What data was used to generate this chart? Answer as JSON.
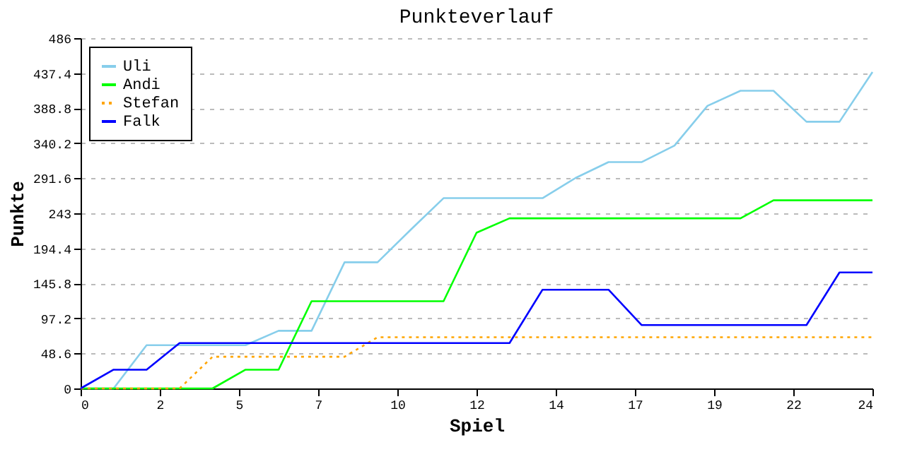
{
  "chart_data": {
    "type": "line",
    "title": "Punkteverlauf",
    "xlabel": "Spiel",
    "ylabel": "Punkte",
    "x": [
      0,
      1,
      2,
      3,
      4,
      5,
      6,
      7,
      8,
      9,
      10,
      11,
      12,
      13,
      14,
      15,
      16,
      17,
      18,
      19,
      20,
      21,
      22,
      23,
      24
    ],
    "series": [
      {
        "name": "Uli",
        "color": "#87ceeb",
        "values": [
          0,
          0,
          60,
          60,
          60,
          60,
          80,
          80,
          175,
          175,
          220,
          264,
          264,
          264,
          264,
          292,
          314,
          314,
          337,
          392,
          413,
          413,
          370,
          370,
          439
        ]
      },
      {
        "name": "Andi",
        "color": "#00ff00",
        "values": [
          0,
          0,
          0,
          0,
          0,
          26,
          26,
          121,
          121,
          121,
          121,
          121,
          216,
          236,
          236,
          236,
          236,
          236,
          236,
          236,
          236,
          261,
          261,
          261,
          261
        ]
      },
      {
        "name": "Stefan",
        "color": "#ffa500",
        "line_style": "dotted",
        "values": [
          0,
          0,
          0,
          0,
          44,
          44,
          44,
          44,
          44,
          71,
          71,
          71,
          71,
          71,
          71,
          71,
          71,
          71,
          71,
          71,
          71,
          71,
          71,
          71,
          71
        ]
      },
      {
        "name": "Falk",
        "color": "#0000ff",
        "values": [
          0,
          26,
          26,
          63,
          63,
          63,
          63,
          63,
          63,
          63,
          63,
          63,
          63,
          63,
          137,
          137,
          137,
          88,
          88,
          88,
          88,
          88,
          88,
          161,
          161
        ]
      }
    ],
    "xlim": [
      0,
      24
    ],
    "xticks": [
      0,
      {
        "value": 2.4,
        "label": "2"
      },
      {
        "value": 4.8,
        "label": "5"
      },
      {
        "value": 7.2,
        "label": "7"
      },
      {
        "value": 9.6,
        "label": "10"
      },
      12,
      {
        "value": 14.4,
        "label": "14"
      },
      {
        "value": 16.8,
        "label": "17"
      },
      {
        "value": 19.2,
        "label": "19"
      },
      {
        "value": 21.6,
        "label": "22"
      },
      24
    ],
    "ylim": [
      0,
      486
    ],
    "yticks": [
      0,
      48.6,
      97.2,
      145.8,
      194.4,
      243,
      291.6,
      340.2,
      388.8,
      437.4,
      486
    ],
    "grid": "y",
    "legend": "top left",
    "line_style": "solid",
    "marker": "none"
  }
}
